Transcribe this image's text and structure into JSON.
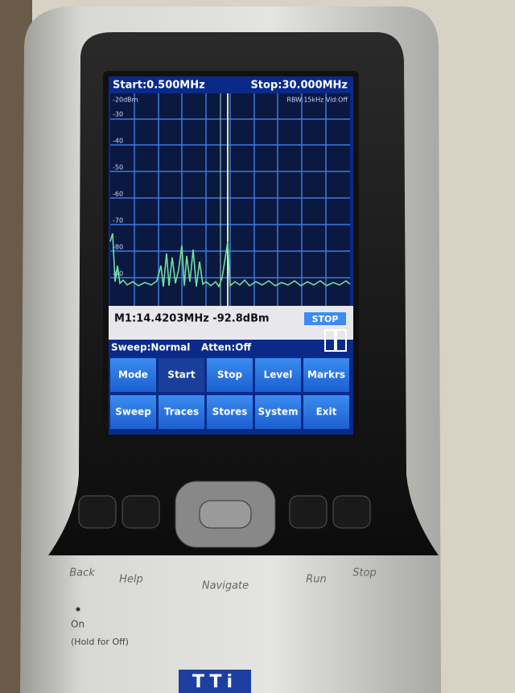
{
  "screen": {
    "header": {
      "start": "Start:0.500MHz",
      "stop": "Stop:30.000MHz",
      "ref_level": "-20dBm",
      "bandwidth": "RBW:15kHz Vid:Off"
    },
    "y_labels": [
      "-30",
      "-40",
      "-50",
      "-60",
      "-70",
      "-80",
      "-90"
    ],
    "marker": "M1:14.4203MHz -92.8dBm",
    "status": "STOP",
    "sweep": "Sweep:Normal",
    "atten": "Atten:Off",
    "buttons": [
      [
        "Mode",
        "Start",
        "Stop",
        "Level",
        "Markrs"
      ],
      [
        "Sweep",
        "Traces",
        "Stores",
        "System",
        "Exit"
      ]
    ]
  },
  "device": {
    "keys": [
      "Back",
      "Help",
      "Navigate",
      "Run",
      "Stop"
    ],
    "power": "On",
    "power_hint": "(Hold for Off)",
    "logo": "TTi"
  }
}
